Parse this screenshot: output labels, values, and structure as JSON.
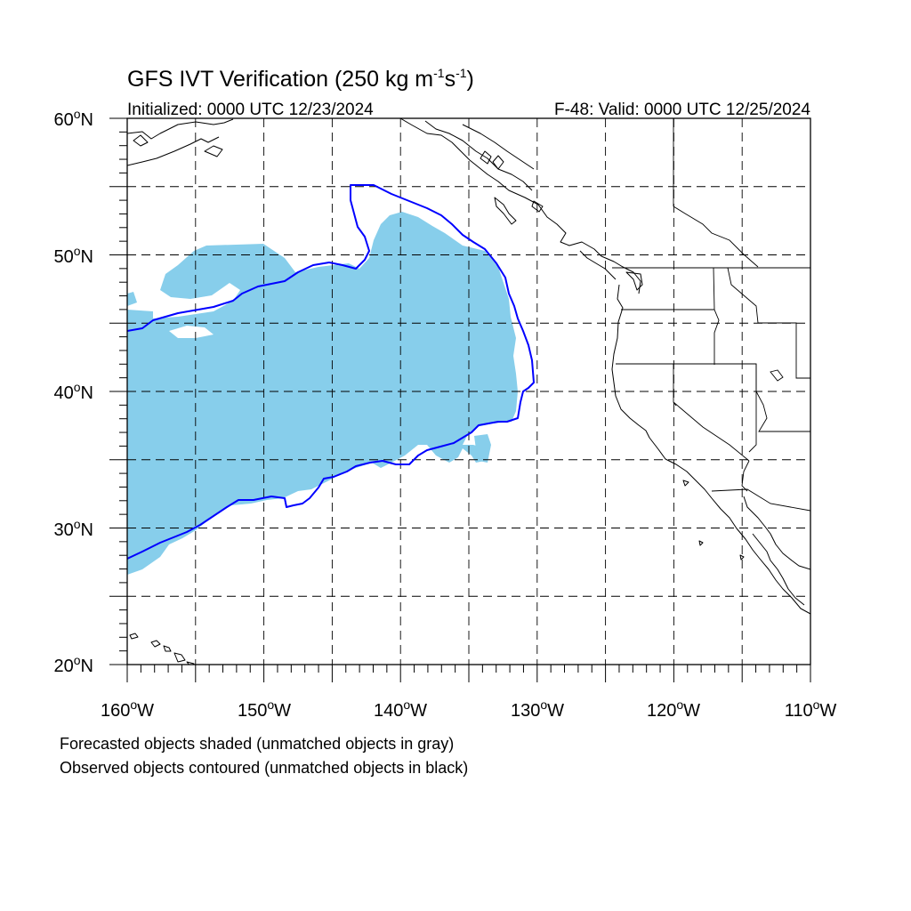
{
  "title": {
    "prefix": "GFS IVT Verification (250 kg m",
    "exp1": "-1",
    "mid": "s",
    "exp2": "-1",
    "suffix": ")"
  },
  "initialized": "Initialized: 0000 UTC 12/23/2024",
  "valid": "F-48: Valid: 0000 UTC 12/25/2024",
  "lat_labels": [
    "60",
    "50",
    "40",
    "30",
    "20"
  ],
  "lon_labels": [
    "160",
    "150",
    "140",
    "130",
    "120",
    "110"
  ],
  "lat_suffix": "N",
  "lon_suffix": "W",
  "degree_symbol": "o",
  "footnotes": [
    "Forecasted objects shaded (unmatched objects in gray)",
    "Observed objects contoured (unmatched objects in black)"
  ],
  "map": {
    "lon_range": [
      -160,
      -110
    ],
    "lat_range": [
      20,
      60
    ],
    "grid_lon_step": 5,
    "grid_lat_step": 5,
    "grid_style": "dashed",
    "forecast_fill_color": "#87ceeb",
    "observed_contour_color": "#0000ff",
    "coastline_color": "#000000"
  }
}
